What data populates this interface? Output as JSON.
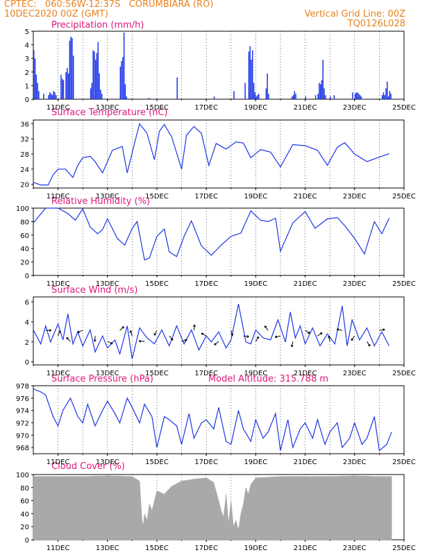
{
  "header": {
    "line1": "CPTEC:   060:56W-12:37S   CORUMBIARA (RO)",
    "line2": "10DEC2020 00Z (GMT)",
    "right1": "Vertical Grid Line: 00Z",
    "right2": "TQ0126L028"
  },
  "colors": {
    "header": "#e8821e",
    "title": "#e0157a",
    "series": "#1c35e6",
    "cloud": "#a9a9a9",
    "wind_arrow": "#000000"
  },
  "x_tick_labels": [
    "11DEC",
    "13DEC",
    "15DEC",
    "17DEC",
    "19DEC",
    "21DEC",
    "23DEC",
    "25DEC"
  ],
  "chart_data": [
    {
      "id": "precip",
      "type": "bar",
      "title": "Precipitation (mm/h)",
      "ylim": [
        0,
        5
      ],
      "yticks": [
        0,
        1,
        2,
        3,
        4,
        5
      ],
      "x_unit": "days since 10DEC2020 00Z",
      "x": [
        0.0,
        0.05,
        0.1,
        0.15,
        0.2,
        0.4,
        0.6,
        0.65,
        0.7,
        0.75,
        0.8,
        0.85,
        0.9,
        1.1,
        1.15,
        1.2,
        1.3,
        1.35,
        1.4,
        1.45,
        1.5,
        1.55,
        1.6,
        2.3,
        2.35,
        2.4,
        2.45,
        2.5,
        2.55,
        2.6,
        2.65,
        2.7,
        2.75,
        3.5,
        3.55,
        3.6,
        3.65,
        3.7,
        3.75,
        4.65,
        5.8,
        7.3,
        8.1,
        8.55,
        8.7,
        8.75,
        8.8,
        8.85,
        8.9,
        8.95,
        9.0,
        9.05,
        9.1,
        9.4,
        9.45,
        9.5,
        10.45,
        10.5,
        10.55,
        10.6,
        11.0,
        11.4,
        11.5,
        11.55,
        11.6,
        11.65,
        11.7,
        11.75,
        11.8,
        12.0,
        12.15,
        12.9,
        13.0,
        13.05,
        13.1,
        13.15,
        13.2,
        13.25,
        14.1,
        14.15,
        14.2,
        14.25,
        14.3,
        14.35,
        14.4,
        14.45
      ],
      "values": [
        3.6,
        3.0,
        1.8,
        1.2,
        0.6,
        0.4,
        0.3,
        0.5,
        0.4,
        0.3,
        0.6,
        0.5,
        0.3,
        1.8,
        1.5,
        1.4,
        2.0,
        2.3,
        1.9,
        4.3,
        4.6,
        4.5,
        3.2,
        0.8,
        1.2,
        3.6,
        3.5,
        2.9,
        3.4,
        4.2,
        1.9,
        0.7,
        0.4,
        2.4,
        2.8,
        3.1,
        4.9,
        1.1,
        0.2,
        0.1,
        1.6,
        0.2,
        0.6,
        1.2,
        3.5,
        3.9,
        2.9,
        3.6,
        1.2,
        0.5,
        0.2,
        0.3,
        0.4,
        0.8,
        1.9,
        0.4,
        0.2,
        0.3,
        0.6,
        0.4,
        0.2,
        0.3,
        0.4,
        1.2,
        1.1,
        1.4,
        2.9,
        0.8,
        0.3,
        0.2,
        0.3,
        0.5,
        0.4,
        0.5,
        0.5,
        0.4,
        0.3,
        0.2,
        0.3,
        0.5,
        0.3,
        0.8,
        1.3,
        0.2,
        0.6,
        0.4
      ]
    },
    {
      "id": "temp",
      "type": "line",
      "title": "Surface Temperature (nC)",
      "ylim": [
        19,
        37
      ],
      "yticks": [
        20,
        24,
        28,
        32,
        36
      ],
      "x_unit": "days since 10DEC2020 00Z",
      "x": [
        0,
        0.3,
        0.6,
        0.8,
        1.0,
        1.3,
        1.6,
        1.8,
        2.0,
        2.3,
        2.5,
        2.8,
        3.2,
        3.6,
        3.8,
        4.1,
        4.3,
        4.6,
        4.9,
        5.1,
        5.3,
        5.6,
        6.0,
        6.2,
        6.5,
        6.8,
        7.1,
        7.4,
        7.8,
        8.2,
        8.5,
        8.8,
        9.2,
        9.6,
        10.0,
        10.5,
        11.0,
        11.5,
        11.9,
        12.3,
        12.6,
        13.0,
        13.5,
        14.0,
        14.4
      ],
      "values": [
        20.5,
        19.8,
        19.8,
        22.5,
        24,
        24,
        21.8,
        25,
        27,
        27.4,
        26,
        23,
        29,
        30,
        23,
        31,
        36,
        33.5,
        26.5,
        34,
        35.8,
        32.5,
        24,
        33,
        35.3,
        33.5,
        25,
        30.8,
        29.3,
        31.2,
        30.9,
        27,
        29.2,
        28.5,
        24.6,
        30.5,
        30.2,
        29,
        25,
        29.8,
        31,
        28,
        26,
        27.2,
        28.1
      ]
    },
    {
      "id": "rh",
      "type": "line",
      "title": "Relative Humidity (%)",
      "ylim": [
        0,
        100
      ],
      "yticks": [
        0,
        20,
        40,
        60,
        80,
        100
      ],
      "x_unit": "days since 10DEC2020 00Z",
      "x": [
        0,
        0.5,
        1.0,
        1.4,
        1.7,
        2.0,
        2.3,
        2.6,
        2.8,
        3.0,
        3.4,
        3.7,
        4.0,
        4.2,
        4.5,
        4.7,
        5.0,
        5.3,
        5.5,
        5.8,
        6.1,
        6.4,
        6.8,
        7.2,
        7.6,
        8.0,
        8.4,
        8.8,
        9.2,
        9.5,
        9.8,
        10.0,
        10.5,
        11.0,
        11.4,
        11.9,
        12.3,
        12.6,
        13.0,
        13.4,
        13.8,
        14.1,
        14.4
      ],
      "values": [
        78,
        100,
        100,
        92,
        82,
        99,
        72,
        62,
        68,
        84,
        55,
        45,
        70,
        80,
        23,
        26,
        58,
        69,
        35,
        28,
        58,
        81,
        44,
        30,
        45,
        58,
        63,
        96,
        82,
        80,
        85,
        36,
        78,
        95,
        70,
        84,
        86,
        74,
        55,
        32,
        80,
        62,
        85
      ]
    },
    {
      "id": "wind",
      "type": "line",
      "title": "Surface Wind (m/s)",
      "ylim": [
        -0.3,
        6.5
      ],
      "yticks": [
        0,
        2,
        4,
        6
      ],
      "x_unit": "days since 10DEC2020 00Z",
      "x": [
        0,
        0.3,
        0.5,
        0.7,
        1.0,
        1.2,
        1.4,
        1.6,
        1.8,
        2.0,
        2.3,
        2.5,
        2.8,
        3.0,
        3.3,
        3.5,
        3.8,
        4.0,
        4.3,
        4.6,
        4.9,
        5.2,
        5.5,
        5.8,
        6.1,
        6.4,
        6.7,
        7.0,
        7.2,
        7.5,
        7.8,
        8.0,
        8.3,
        8.6,
        8.8,
        9.0,
        9.3,
        9.6,
        9.9,
        10.2,
        10.4,
        10.6,
        10.8,
        11.0,
        11.3,
        11.6,
        11.9,
        12.2,
        12.5,
        12.7,
        12.9,
        13.2,
        13.5,
        13.8,
        14.1,
        14.4
      ],
      "values": [
        3.2,
        1.8,
        3.6,
        2.0,
        3.8,
        2.2,
        4.8,
        1.8,
        3.0,
        1.6,
        3.2,
        1.0,
        2.6,
        1.4,
        2.2,
        0.8,
        3.6,
        0.3,
        3.4,
        2.4,
        1.8,
        3.2,
        1.6,
        3.6,
        1.8,
        3.2,
        1.2,
        2.6,
        2.0,
        3.0,
        1.4,
        2.2,
        5.8,
        2.0,
        1.8,
        3.2,
        2.4,
        2.2,
        4.2,
        2.0,
        5.0,
        2.4,
        3.6,
        1.8,
        3.4,
        1.6,
        2.8,
        1.8,
        5.6,
        1.6,
        4.2,
        2.2,
        3.4,
        1.6,
        3.0,
        1.6
      ]
    },
    {
      "id": "pressure",
      "type": "line",
      "title": "Surface Pressure (hPa)",
      "annotation": "Model Altitude: 315.788 m",
      "ylim": [
        967,
        978
      ],
      "yticks": [
        968,
        970,
        972,
        974,
        976,
        978
      ],
      "x_unit": "days since 10DEC2020 00Z",
      "x": [
        0,
        0.3,
        0.5,
        0.8,
        1.0,
        1.2,
        1.5,
        1.8,
        2.0,
        2.2,
        2.5,
        2.8,
        3.0,
        3.3,
        3.5,
        3.8,
        4.0,
        4.3,
        4.5,
        4.8,
        5.0,
        5.3,
        5.5,
        5.8,
        6.0,
        6.3,
        6.5,
        6.8,
        7.0,
        7.3,
        7.5,
        7.8,
        8.0,
        8.3,
        8.5,
        8.8,
        9.0,
        9.3,
        9.5,
        9.8,
        10.0,
        10.3,
        10.5,
        10.8,
        11.0,
        11.3,
        11.5,
        11.8,
        12.0,
        12.3,
        12.5,
        12.8,
        13.0,
        13.3,
        13.5,
        13.8,
        14.0,
        14.3,
        14.5
      ],
      "values": [
        977.5,
        977,
        976.5,
        973,
        971.5,
        974,
        976,
        973,
        972,
        975,
        971.5,
        974,
        975.5,
        973.5,
        972,
        976,
        974.5,
        972,
        975,
        973,
        968,
        973,
        972.5,
        971.5,
        968.5,
        973.5,
        969.5,
        972,
        972.5,
        971,
        974.5,
        969,
        968.5,
        974,
        971,
        969,
        972.5,
        969.5,
        970.5,
        973.5,
        967.5,
        972.5,
        968,
        971,
        972,
        969.5,
        972.5,
        968.5,
        970.5,
        972,
        968,
        969.5,
        972,
        968.5,
        969.5,
        973,
        967.5,
        968.5,
        970.5
      ]
    },
    {
      "id": "cloud",
      "type": "area",
      "title": "Cloud Cover (%)",
      "ylim": [
        0,
        100
      ],
      "yticks": [
        0,
        20,
        40,
        60,
        80,
        100
      ],
      "x_unit": "days since 10DEC2020 00Z",
      "x": [
        0,
        1.0,
        2.0,
        3.0,
        4.0,
        4.3,
        4.4,
        4.45,
        4.5,
        4.6,
        4.7,
        4.8,
        5.0,
        5.3,
        5.6,
        6.0,
        6.5,
        7.0,
        7.3,
        7.5,
        7.6,
        7.7,
        7.8,
        7.9,
        8.0,
        8.1,
        8.2,
        8.3,
        8.4,
        8.5,
        8.6,
        8.7,
        8.8,
        8.9,
        9.0,
        9.5,
        10.0,
        11.0,
        12.0,
        13.0,
        14.0,
        14.5
      ],
      "values": [
        97,
        97,
        97,
        98,
        97,
        90,
        30,
        22,
        40,
        30,
        55,
        45,
        75,
        70,
        82,
        90,
        93,
        95,
        88,
        60,
        45,
        35,
        70,
        25,
        60,
        20,
        30,
        15,
        40,
        55,
        80,
        70,
        85,
        90,
        95,
        96,
        97,
        97,
        97,
        98,
        97,
        97
      ]
    }
  ]
}
